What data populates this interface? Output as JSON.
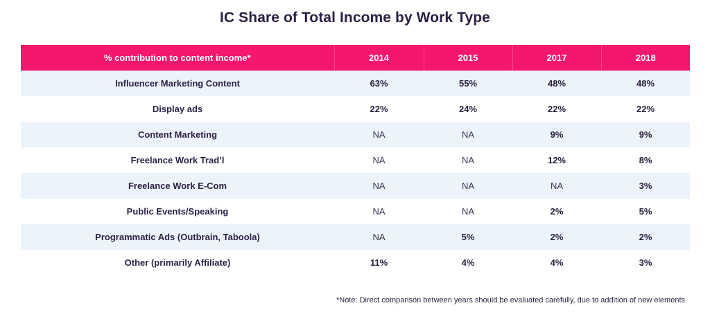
{
  "chart_data": {
    "type": "table",
    "title": "IC Share of Total Income by Work Type",
    "header": [
      "% contribution to content income*",
      "2014",
      "2015",
      "2017",
      "2018"
    ],
    "rows": [
      {
        "label": "Influencer Marketing Content",
        "values": [
          "63%",
          "55%",
          "48%",
          "48%"
        ]
      },
      {
        "label": "Display ads",
        "values": [
          "22%",
          "24%",
          "22%",
          "22%"
        ]
      },
      {
        "label": "Content Marketing",
        "values": [
          "NA",
          "NA",
          "9%",
          "9%"
        ]
      },
      {
        "label": "Freelance Work Trad’l",
        "values": [
          "NA",
          "NA",
          "12%",
          "8%"
        ]
      },
      {
        "label": "Freelance Work E-Com",
        "values": [
          "NA",
          "NA",
          "NA",
          "3%"
        ]
      },
      {
        "label": "Public Events/Speaking",
        "values": [
          "NA",
          "NA",
          "2%",
          "5%"
        ]
      },
      {
        "label": "Programmatic Ads (Outbrain, Taboola)",
        "values": [
          "NA",
          "5%",
          "2%",
          "2%"
        ]
      },
      {
        "label": "Other (primarily Affiliate)",
        "values": [
          "11%",
          "4%",
          "4%",
          "3%"
        ]
      }
    ],
    "note": "*Note: Direct comparison between years should be evaluated carefully, due to addition of new elements",
    "colors": {
      "header_background": "#f5166f",
      "header_text": "#ffffff",
      "row_shade": "#edf3fb",
      "title_text": "#2b1f45"
    }
  }
}
